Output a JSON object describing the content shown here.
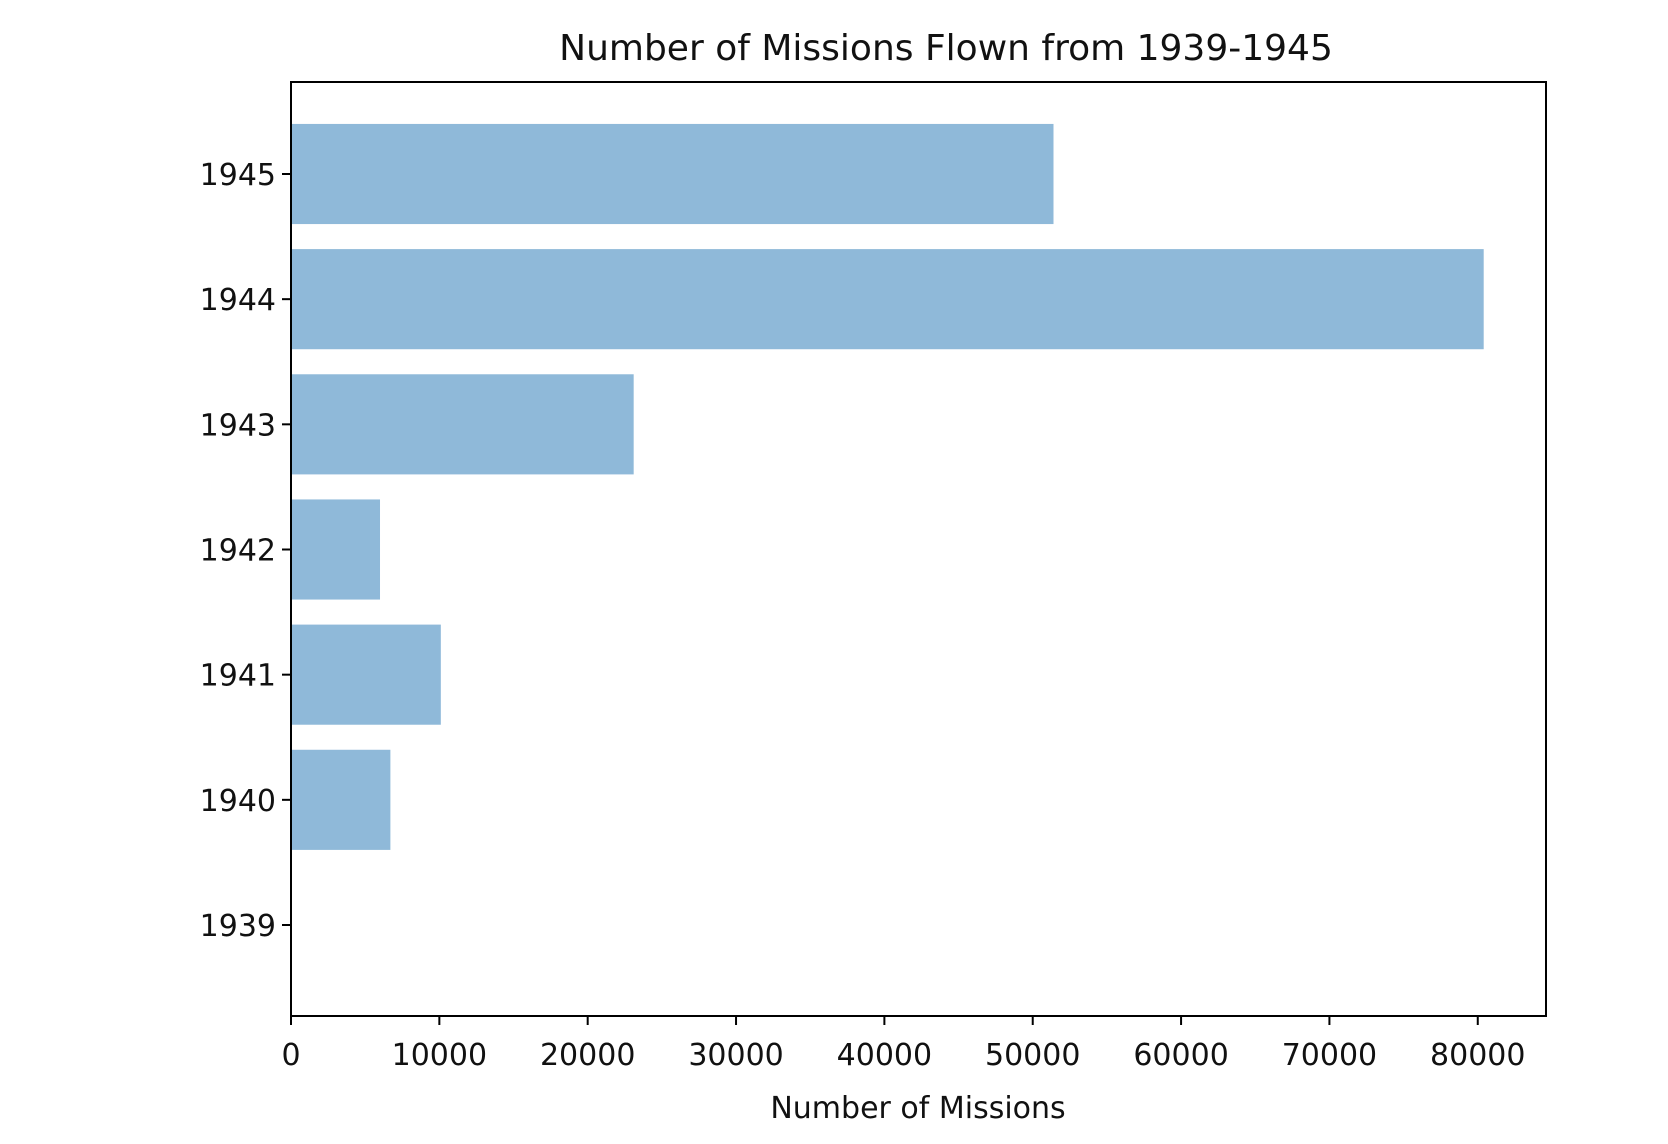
{
  "chart_data": {
    "type": "bar",
    "orientation": "horizontal",
    "title": "Number of Missions Flown from 1939-1945",
    "xlabel": "Number of Missions",
    "ylabel": "",
    "categories": [
      "1939",
      "1940",
      "1941",
      "1942",
      "1943",
      "1944",
      "1945"
    ],
    "values": [
      0,
      6700,
      10100,
      6000,
      23100,
      80400,
      51400
    ],
    "xlim": [
      0,
      84600
    ],
    "xticks": [
      "0",
      "10000",
      "20000",
      "30000",
      "40000",
      "50000",
      "60000",
      "70000",
      "80000"
    ],
    "bar_color": "#8fb9d9",
    "grid": false
  }
}
